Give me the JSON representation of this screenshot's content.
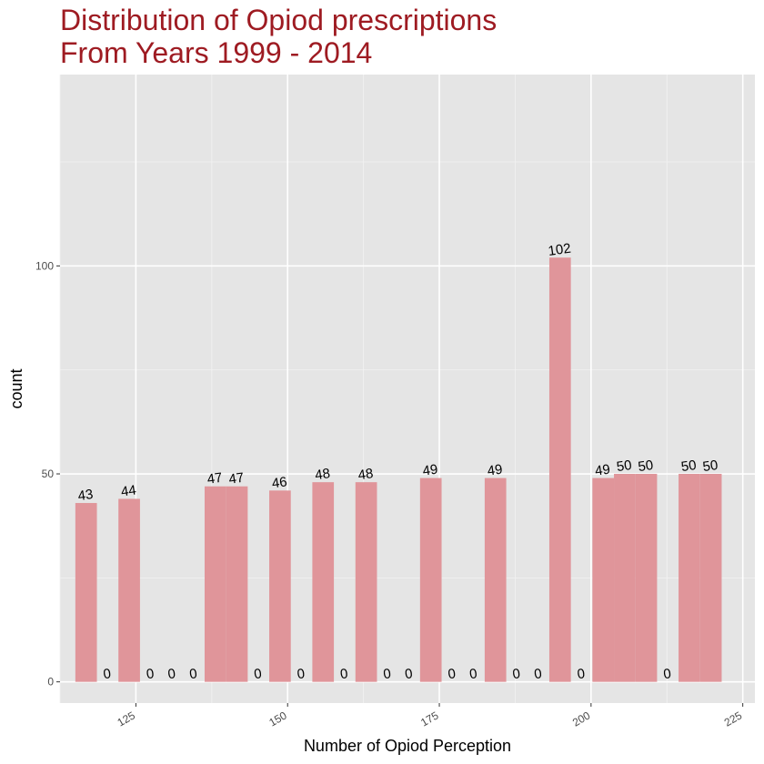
{
  "chart_data": {
    "type": "bar",
    "title": "Distribution of Opiod prescriptions",
    "subtitle": "From Years 1999 - 2014",
    "xlabel": "Number of Opiod Perception",
    "ylabel": "count",
    "xlim": [
      112.5,
      227
    ],
    "ylim": [
      -5.1,
      146
    ],
    "x_ticks": [
      125,
      150,
      175,
      200,
      225
    ],
    "y_ticks": [
      0,
      50,
      100
    ],
    "grid": true,
    "legend": "none",
    "bar_width": 3.55,
    "x": [
      116.8,
      120.35,
      123.9,
      127.45,
      131.0,
      134.55,
      138.1,
      141.65,
      145.2,
      148.75,
      152.3,
      155.85,
      159.4,
      162.95,
      166.5,
      170.05,
      173.6,
      177.15,
      180.7,
      184.25,
      187.8,
      191.35,
      194.9,
      198.45,
      202.0,
      205.55,
      209.1,
      212.65,
      216.2,
      219.75
    ],
    "values": [
      43,
      0,
      44,
      0,
      0,
      0,
      47,
      47,
      0,
      46,
      0,
      48,
      0,
      48,
      0,
      0,
      49,
      0,
      0,
      49,
      0,
      0,
      102,
      0,
      49,
      50,
      50,
      0,
      50,
      50
    ],
    "labels": [
      "43",
      "0",
      "44",
      "0",
      "0",
      "0",
      "47",
      "47",
      "0",
      "46",
      "0",
      "48",
      "0",
      "48",
      "0",
      "0",
      "49",
      "0",
      "0",
      "49",
      "0",
      "0",
      "102",
      "0",
      "49",
      "50",
      "50",
      "0",
      "50",
      "50"
    ]
  },
  "colors": {
    "title": "#9e1b22",
    "bar_fill": "#e0959a",
    "panel_bg": "#e5e5e5",
    "grid_major": "#ffffff",
    "grid_minor": "#f2f2f2",
    "tick_text": "#4d4d4d",
    "axis_text": "#000000"
  }
}
